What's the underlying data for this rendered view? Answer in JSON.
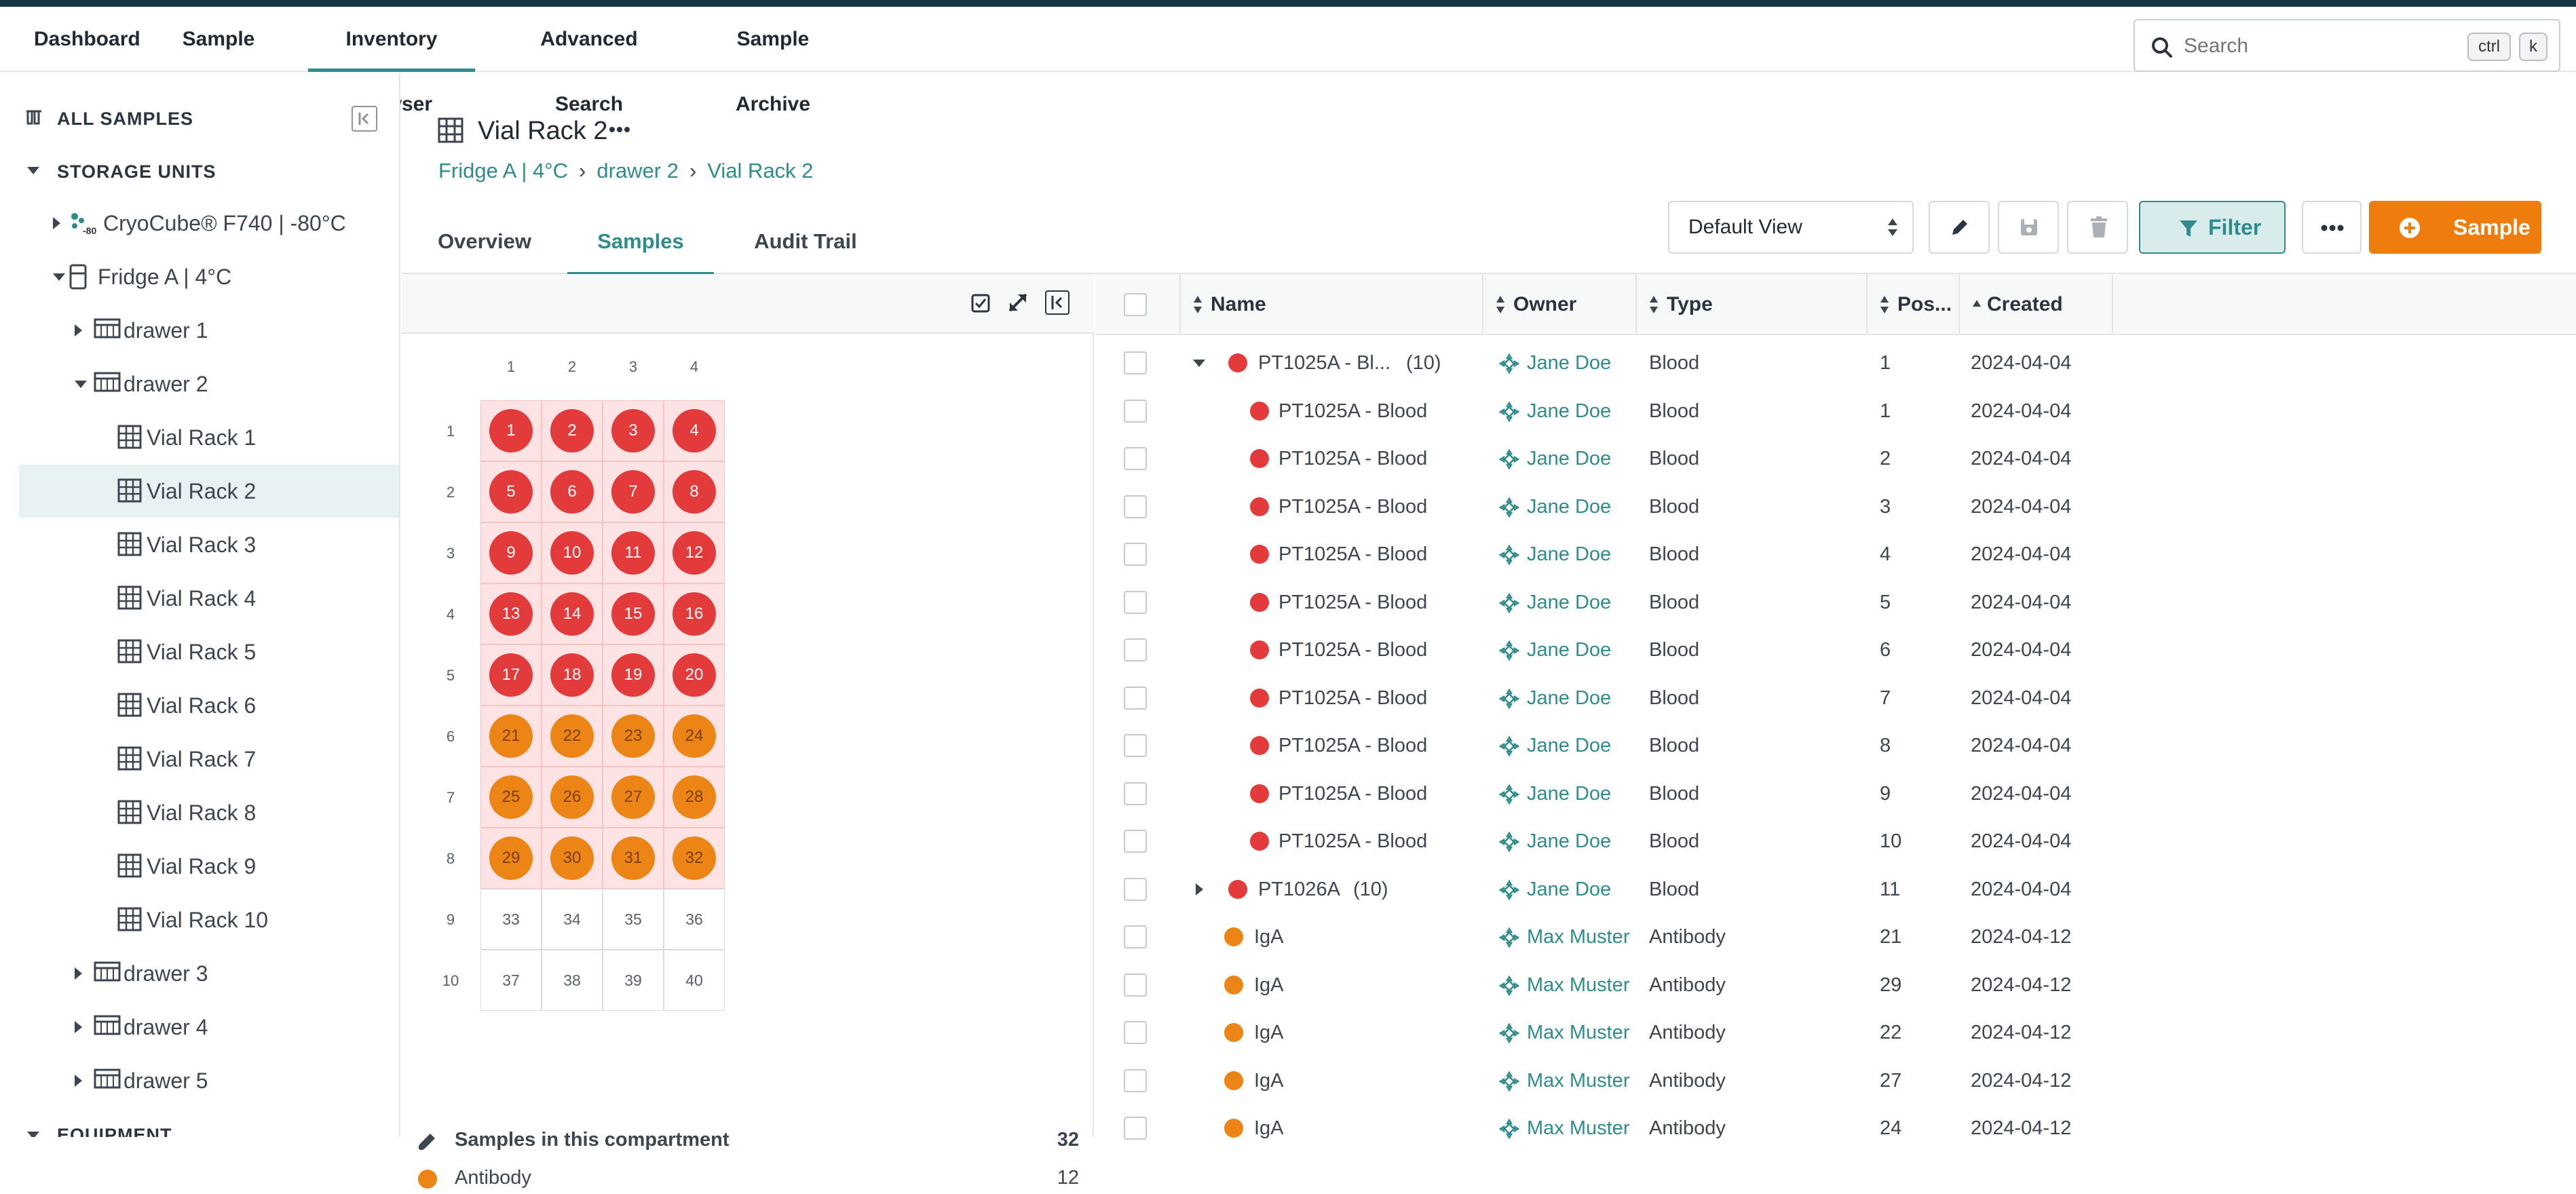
{
  "nav": {
    "tabs": [
      "Dashboard",
      "Sample List",
      "Inventory Browser",
      "Advanced Search",
      "Sample Archive"
    ],
    "active": "Inventory Browser",
    "search_placeholder": "Search",
    "kbd_ctrl": "ctrl",
    "kbd_k": "k"
  },
  "sidebar": {
    "all_samples": "ALL SAMPLES",
    "storage_units": "STORAGE UNITS",
    "equipment": "EQUIPMENT",
    "items": [
      {
        "label": "CryoCube® F740 | -80°C",
        "level": 1,
        "caret": "right",
        "icon": "freezer-icon"
      },
      {
        "label": "Fridge A | 4°C",
        "level": 1,
        "caret": "down",
        "icon": "fridge-icon"
      },
      {
        "label": "drawer 1",
        "level": 2,
        "caret": "right",
        "icon": "drawer-icon"
      },
      {
        "label": "drawer 2",
        "level": 2,
        "caret": "down",
        "icon": "drawer-icon"
      },
      {
        "label": "Vial Rack 1",
        "level": 3,
        "icon": "rack-icon"
      },
      {
        "label": "Vial Rack 2",
        "level": 3,
        "icon": "rack-icon",
        "selected": true
      },
      {
        "label": "Vial Rack 3",
        "level": 3,
        "icon": "rack-icon"
      },
      {
        "label": "Vial Rack 4",
        "level": 3,
        "icon": "rack-icon"
      },
      {
        "label": "Vial Rack 5",
        "level": 3,
        "icon": "rack-icon"
      },
      {
        "label": "Vial Rack 6",
        "level": 3,
        "icon": "rack-icon"
      },
      {
        "label": "Vial Rack 7",
        "level": 3,
        "icon": "rack-icon"
      },
      {
        "label": "Vial Rack 8",
        "level": 3,
        "icon": "rack-icon"
      },
      {
        "label": "Vial Rack 9",
        "level": 3,
        "icon": "rack-icon"
      },
      {
        "label": "Vial Rack 10",
        "level": 3,
        "icon": "rack-icon"
      },
      {
        "label": "drawer 3",
        "level": 2,
        "caret": "right",
        "icon": "drawer-icon"
      },
      {
        "label": "drawer 4",
        "level": 2,
        "caret": "right",
        "icon": "drawer-icon"
      },
      {
        "label": "drawer 5",
        "level": 2,
        "caret": "right",
        "icon": "drawer-icon"
      }
    ]
  },
  "header": {
    "title": "Vial Rack 2",
    "breadcrumb": [
      "Fridge A | 4°C",
      "drawer 2",
      "Vial Rack 2"
    ]
  },
  "subtabs": [
    "Overview",
    "Samples",
    "Audit Trail"
  ],
  "subtab_active": "Samples",
  "toolbar": {
    "view": "Default View",
    "filter_label": "Filter",
    "sample_label": "Sample"
  },
  "rack": {
    "columns": [
      "1",
      "2",
      "3",
      "4"
    ],
    "rows": [
      "1",
      "2",
      "3",
      "4",
      "5",
      "6",
      "7",
      "8",
      "9",
      "10"
    ],
    "cells": [
      {
        "n": "1",
        "s": "red"
      },
      {
        "n": "2",
        "s": "red"
      },
      {
        "n": "3",
        "s": "red"
      },
      {
        "n": "4",
        "s": "red"
      },
      {
        "n": "5",
        "s": "red"
      },
      {
        "n": "6",
        "s": "red"
      },
      {
        "n": "7",
        "s": "red"
      },
      {
        "n": "8",
        "s": "red"
      },
      {
        "n": "9",
        "s": "red"
      },
      {
        "n": "10",
        "s": "red"
      },
      {
        "n": "11",
        "s": "red"
      },
      {
        "n": "12",
        "s": "red"
      },
      {
        "n": "13",
        "s": "red"
      },
      {
        "n": "14",
        "s": "red"
      },
      {
        "n": "15",
        "s": "red"
      },
      {
        "n": "16",
        "s": "red"
      },
      {
        "n": "17",
        "s": "red"
      },
      {
        "n": "18",
        "s": "red"
      },
      {
        "n": "19",
        "s": "red"
      },
      {
        "n": "20",
        "s": "red"
      },
      {
        "n": "21",
        "s": "orange"
      },
      {
        "n": "22",
        "s": "orange"
      },
      {
        "n": "23",
        "s": "orange"
      },
      {
        "n": "24",
        "s": "orange"
      },
      {
        "n": "25",
        "s": "orange"
      },
      {
        "n": "26",
        "s": "orange"
      },
      {
        "n": "27",
        "s": "orange"
      },
      {
        "n": "28",
        "s": "orange"
      },
      {
        "n": "29",
        "s": "orange"
      },
      {
        "n": "30",
        "s": "orange"
      },
      {
        "n": "31",
        "s": "orange"
      },
      {
        "n": "32",
        "s": "orange"
      },
      {
        "n": "33",
        "s": "empty"
      },
      {
        "n": "34",
        "s": "empty"
      },
      {
        "n": "35",
        "s": "empty"
      },
      {
        "n": "36",
        "s": "empty"
      },
      {
        "n": "37",
        "s": "empty"
      },
      {
        "n": "38",
        "s": "empty"
      },
      {
        "n": "39",
        "s": "empty"
      },
      {
        "n": "40",
        "s": "empty"
      }
    ],
    "summary_title": "Samples in this compartment",
    "summary_count": "32",
    "summary_rows": [
      {
        "label": "Antibody",
        "count": "12",
        "color": "#ec8515"
      }
    ]
  },
  "table": {
    "headers": [
      "Name",
      "Owner",
      "Type",
      "Pos...",
      "Created"
    ],
    "rows": [
      {
        "name": "PT1025A - Bl...",
        "count": "(10)",
        "owner": "Jane Doe",
        "type": "Blood",
        "pos": "1",
        "created": "2024-04-04",
        "color": "red",
        "group": "expanded"
      },
      {
        "name": "PT1025A - Blood",
        "owner": "Jane Doe",
        "type": "Blood",
        "pos": "1",
        "created": "2024-04-04",
        "color": "red",
        "group": "child"
      },
      {
        "name": "PT1025A - Blood",
        "owner": "Jane Doe",
        "type": "Blood",
        "pos": "2",
        "created": "2024-04-04",
        "color": "red",
        "group": "child"
      },
      {
        "name": "PT1025A - Blood",
        "owner": "Jane Doe",
        "type": "Blood",
        "pos": "3",
        "created": "2024-04-04",
        "color": "red",
        "group": "child"
      },
      {
        "name": "PT1025A - Blood",
        "owner": "Jane Doe",
        "type": "Blood",
        "pos": "4",
        "created": "2024-04-04",
        "color": "red",
        "group": "child"
      },
      {
        "name": "PT1025A - Blood",
        "owner": "Jane Doe",
        "type": "Blood",
        "pos": "5",
        "created": "2024-04-04",
        "color": "red",
        "group": "child"
      },
      {
        "name": "PT1025A - Blood",
        "owner": "Jane Doe",
        "type": "Blood",
        "pos": "6",
        "created": "2024-04-04",
        "color": "red",
        "group": "child"
      },
      {
        "name": "PT1025A - Blood",
        "owner": "Jane Doe",
        "type": "Blood",
        "pos": "7",
        "created": "2024-04-04",
        "color": "red",
        "group": "child"
      },
      {
        "name": "PT1025A - Blood",
        "owner": "Jane Doe",
        "type": "Blood",
        "pos": "8",
        "created": "2024-04-04",
        "color": "red",
        "group": "child"
      },
      {
        "name": "PT1025A - Blood",
        "owner": "Jane Doe",
        "type": "Blood",
        "pos": "9",
        "created": "2024-04-04",
        "color": "red",
        "group": "child"
      },
      {
        "name": "PT1025A - Blood",
        "owner": "Jane Doe",
        "type": "Blood",
        "pos": "10",
        "created": "2024-04-04",
        "color": "red",
        "group": "child"
      },
      {
        "name": "PT1026A",
        "count": "(10)",
        "owner": "Jane Doe",
        "type": "Blood",
        "pos": "11",
        "created": "2024-04-04",
        "color": "red",
        "group": "collapsed"
      },
      {
        "name": "IgA",
        "owner": "Max Muster",
        "type": "Antibody",
        "pos": "21",
        "created": "2024-04-12",
        "color": "orange",
        "group": "plain"
      },
      {
        "name": "IgA",
        "owner": "Max Muster",
        "type": "Antibody",
        "pos": "29",
        "created": "2024-04-12",
        "color": "orange",
        "group": "plain"
      },
      {
        "name": "IgA",
        "owner": "Max Muster",
        "type": "Antibody",
        "pos": "22",
        "created": "2024-04-12",
        "color": "orange",
        "group": "plain"
      },
      {
        "name": "IgA",
        "owner": "Max Muster",
        "type": "Antibody",
        "pos": "27",
        "created": "2024-04-12",
        "color": "orange",
        "group": "plain"
      },
      {
        "name": "IgA",
        "owner": "Max Muster",
        "type": "Antibody",
        "pos": "24",
        "created": "2024-04-12",
        "color": "orange",
        "group": "plain"
      }
    ]
  },
  "colors": {
    "accent": "#2e8c8c",
    "primary": "#ef7d0d",
    "red": "#e33b3b",
    "orange": "#ec8515",
    "topbar": "#153544"
  }
}
